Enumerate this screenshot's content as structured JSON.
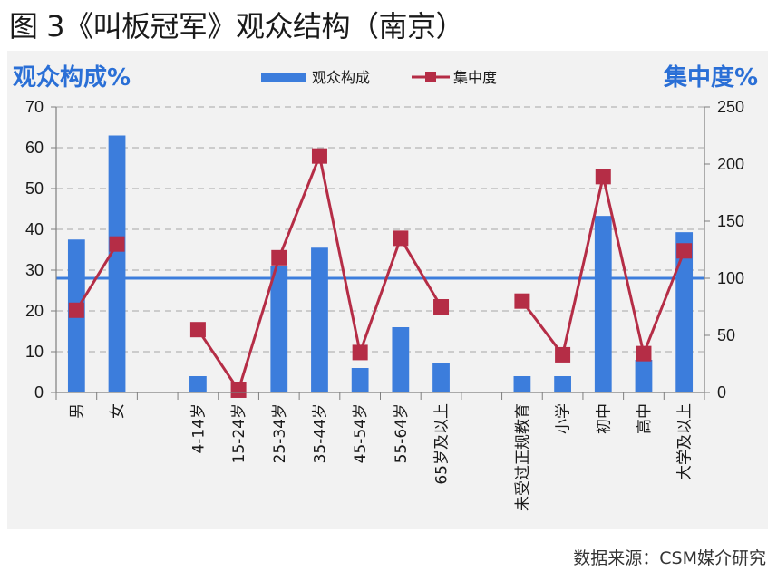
{
  "figure": {
    "title": "图 3《叫板冠军》观众结构（南京）",
    "source": "数据来源：CSM媒介研究"
  },
  "chart_data": {
    "type": "bar",
    "left_axis_label": "观众构成%",
    "right_axis_label": "集中度%",
    "categories": [
      "男",
      "女",
      "",
      "4-14岁",
      "15-24岁",
      "25-34岁",
      "35-44岁",
      "45-54岁",
      "55-64岁",
      "65岁及以上",
      "",
      "未受过正规教育",
      "小学",
      "初中",
      "高中",
      "大学及以上"
    ],
    "series": [
      {
        "name": "观众构成",
        "type": "bar",
        "axis": "left",
        "color": "#3c7ddc",
        "values": [
          37.5,
          63,
          null,
          4,
          0,
          31,
          35.5,
          6,
          16,
          7.2,
          null,
          4,
          4,
          43.3,
          8,
          39.3
        ]
      },
      {
        "name": "集中度",
        "type": "line",
        "axis": "right",
        "color": "#b52d46",
        "marker": "square",
        "segments": [
          [
            [
              0,
              72
            ],
            [
              1,
              130
            ]
          ],
          [
            [
              3,
              55
            ],
            [
              4,
              2
            ],
            [
              5,
              118
            ],
            [
              6,
              207
            ],
            [
              7,
              35
            ],
            [
              8,
              135
            ],
            [
              9,
              75
            ]
          ],
          [
            [
              11,
              80
            ],
            [
              12,
              33
            ],
            [
              13,
              189
            ],
            [
              14,
              34
            ],
            [
              15,
              124
            ]
          ]
        ]
      }
    ],
    "reference_line": {
      "axis": "right",
      "value": 100,
      "color": "#3c7ddc"
    },
    "left_axis": {
      "ylim": [
        0,
        70
      ],
      "ticks": [
        0,
        10,
        20,
        30,
        40,
        50,
        60,
        70
      ]
    },
    "right_axis": {
      "ylim": [
        0,
        250
      ],
      "ticks": [
        0,
        50,
        100,
        150,
        200,
        250
      ]
    },
    "grid": true,
    "legend_position": "top-center"
  }
}
